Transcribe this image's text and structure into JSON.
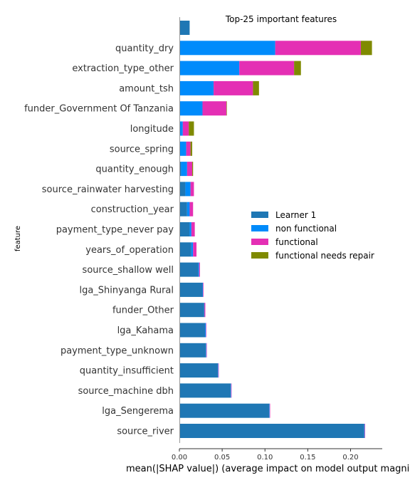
{
  "chart_data": {
    "type": "bar",
    "orientation": "horizontal",
    "stacked": true,
    "title": "Top-25 important features",
    "xlabel": "mean(|SHAP value|) (average impact on model output magni",
    "ylabel": "feature",
    "xlim": [
      0,
      0.237
    ],
    "xticks": [
      "0.00",
      "0.05",
      "0.10",
      "0.15",
      "0.20"
    ],
    "xtick_values": [
      0,
      0.05,
      0.1,
      0.15,
      0.2
    ],
    "legend_position": "center-right",
    "categories": [
      "",
      "quantity_dry",
      "extraction_type_other",
      "amount_tsh",
      "funder_Government Of Tanzania",
      "longitude",
      "source_spring",
      "quantity_enough",
      "source_rainwater harvesting",
      "construction_year",
      "payment_type_never pay",
      "years_of_operation",
      "source_shallow well",
      "lga_Shinyanga Rural",
      "funder_Other",
      "lga_Kahama",
      "payment_type_unknown",
      "quantity_insufficient",
      "source_machine dbh",
      "lga_Sengerema",
      "source_river"
    ],
    "series": [
      {
        "name": "Learner 1",
        "color": "#1f77b4",
        "values": [
          0.012,
          0,
          0,
          0,
          0,
          0,
          0,
          0.002,
          0.007,
          0.009,
          0.012,
          0.014,
          0.022,
          0.027,
          0.029,
          0.03,
          0.031,
          0.045,
          0.06,
          0.105,
          0.216
        ]
      },
      {
        "name": "non functional",
        "color": "#008bfb",
        "values": [
          0,
          0.112,
          0.07,
          0.04,
          0.027,
          0.004,
          0.008,
          0.007,
          0.006,
          0.003,
          0.002,
          0.002,
          0.001,
          0.0006,
          0.0003,
          0.001,
          0.0005,
          0.0005,
          0.0005,
          0.0005,
          0.0005
        ]
      },
      {
        "name": "functional",
        "color": "#e42fb4",
        "values": [
          0,
          0.1,
          0.064,
          0.046,
          0.028,
          0.007,
          0.005,
          0.006,
          0.004,
          0.004,
          0.004,
          0.004,
          0.001,
          0.0006,
          0.001,
          0.0005,
          0.0005,
          0.0005,
          0.0005,
          0.0005,
          0.0005
        ]
      },
      {
        "name": "functional needs repair",
        "color": "#7f8a00",
        "values": [
          0,
          0.013,
          0.008,
          0.007,
          0.0005,
          0.006,
          0.002,
          0.001,
          0,
          0,
          0,
          0,
          0,
          0,
          0,
          0,
          0,
          0,
          0,
          0,
          0
        ]
      }
    ]
  }
}
